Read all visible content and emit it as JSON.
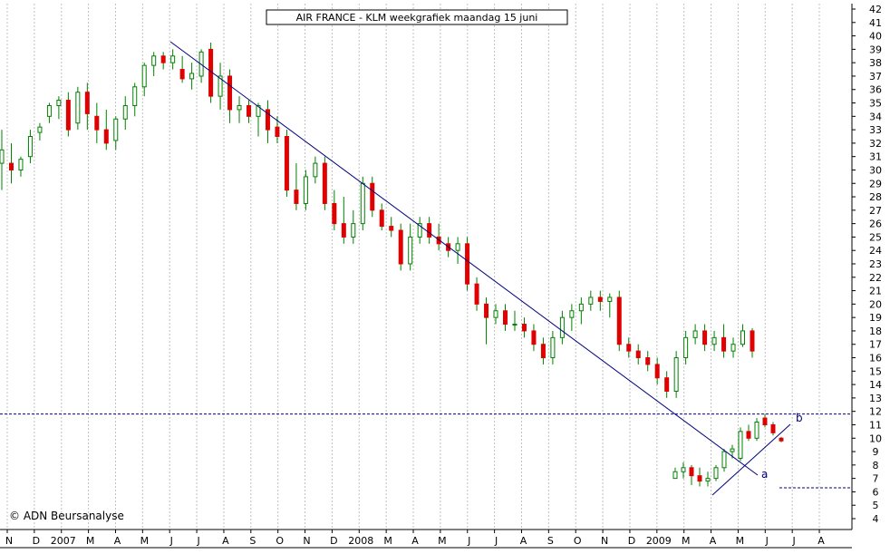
{
  "chart_data": {
    "type": "candlestick",
    "title": "AIR FRANCE - KLM weekgrafiek maandag 15 juni",
    "copyright": "© ADN Beursanalyse",
    "ylim": [
      4,
      42
    ],
    "y_ticks": [
      4,
      5,
      6,
      7,
      8,
      9,
      10,
      11,
      12,
      13,
      14,
      15,
      16,
      17,
      18,
      19,
      20,
      21,
      22,
      23,
      24,
      25,
      26,
      27,
      28,
      29,
      30,
      31,
      32,
      33,
      34,
      35,
      36,
      37,
      38,
      39,
      40,
      41,
      42
    ],
    "x_ticks": [
      "N",
      "D",
      "2007",
      "M",
      "A",
      "M",
      "J",
      "J",
      "A",
      "S",
      "O",
      "N",
      "D",
      "2008",
      "M",
      "A",
      "M",
      "J",
      "J",
      "A",
      "S",
      "O",
      "N",
      "D",
      "2009",
      "M",
      "A",
      "M",
      "J",
      "J",
      "A"
    ],
    "grid": true,
    "colors": {
      "up": "#ffffff",
      "down": "#e00000",
      "wick": "#008000",
      "trend": "#000080",
      "grid": "#c0c0c0",
      "level": "#000080"
    },
    "horizontal_levels": [
      11.8,
      6.3
    ],
    "trendlines": [
      {
        "start": [
          0,
          39.5
        ],
        "end": [
          79,
          7.0
        ]
      },
      {
        "start": [
          0,
          5.5
        ],
        "end": [
          11,
          11.0
        ]
      }
    ],
    "annotations": [
      {
        "label": "a",
        "value": 7.3
      },
      {
        "label": "b",
        "value": 11.5
      }
    ],
    "series": [
      {
        "ohlc": [
          [
            30.5,
            33.0,
            28.5,
            31.5
          ],
          [
            30.5,
            32.0,
            29.0,
            30.0
          ],
          [
            30.0,
            31.0,
            29.5,
            30.8
          ],
          [
            31.0,
            33.0,
            30.5,
            32.5
          ],
          [
            32.8,
            33.5,
            32.2,
            33.2
          ],
          [
            34.0,
            35.0,
            33.5,
            34.8
          ],
          [
            34.8,
            35.5,
            33.8,
            35.2
          ],
          [
            35.2,
            35.8,
            32.5,
            33.0
          ],
          [
            33.5,
            36.2,
            33.0,
            35.8
          ],
          [
            35.8,
            36.5,
            33.0,
            34.2
          ],
          [
            34.0,
            35.0,
            32.0,
            33.0
          ],
          [
            33.0,
            34.5,
            31.5,
            32.0
          ],
          [
            32.2,
            34.0,
            31.5,
            33.8
          ],
          [
            33.8,
            35.5,
            33.0,
            34.8
          ],
          [
            34.8,
            36.5,
            34.0,
            36.2
          ],
          [
            36.2,
            38.0,
            35.5,
            37.8
          ],
          [
            37.8,
            38.8,
            37.0,
            38.5
          ],
          [
            38.5,
            38.8,
            37.5,
            38.0
          ],
          [
            38.0,
            39.0,
            37.5,
            38.5
          ],
          [
            37.5,
            38.5,
            36.5,
            36.8
          ],
          [
            36.8,
            38.0,
            36.0,
            37.2
          ],
          [
            37.0,
            39.0,
            36.5,
            38.8
          ],
          [
            39.0,
            39.5,
            35.0,
            35.5
          ],
          [
            35.5,
            38.0,
            34.5,
            37.0
          ],
          [
            37.0,
            37.5,
            33.5,
            34.5
          ],
          [
            34.5,
            35.5,
            33.5,
            34.8
          ],
          [
            34.8,
            35.2,
            33.5,
            34.0
          ],
          [
            34.0,
            35.0,
            32.5,
            34.8
          ],
          [
            34.5,
            35.2,
            32.0,
            33.0
          ],
          [
            33.2,
            34.0,
            32.0,
            32.5
          ],
          [
            32.5,
            33.0,
            28.0,
            28.5
          ],
          [
            28.5,
            30.5,
            27.0,
            27.5
          ],
          [
            27.5,
            30.0,
            27.0,
            29.5
          ],
          [
            29.5,
            31.0,
            29.0,
            30.5
          ],
          [
            30.5,
            31.0,
            27.0,
            27.5
          ],
          [
            27.5,
            28.5,
            25.5,
            26.0
          ],
          [
            26.0,
            28.0,
            24.5,
            25.0
          ],
          [
            25.0,
            27.0,
            24.5,
            26.0
          ],
          [
            26.0,
            29.5,
            25.5,
            29.0
          ],
          [
            29.0,
            29.5,
            26.5,
            27.0
          ],
          [
            27.0,
            27.5,
            25.5,
            25.8
          ],
          [
            25.8,
            26.5,
            25.0,
            25.5
          ],
          [
            25.5,
            26.0,
            22.5,
            23.0
          ],
          [
            23.0,
            26.0,
            22.5,
            25.0
          ],
          [
            25.0,
            26.5,
            24.5,
            26.0
          ],
          [
            26.0,
            26.5,
            24.5,
            25.0
          ],
          [
            25.0,
            26.0,
            24.0,
            24.5
          ],
          [
            24.5,
            25.0,
            23.5,
            24.0
          ],
          [
            24.0,
            25.0,
            23.0,
            24.5
          ],
          [
            24.5,
            25.0,
            21.0,
            21.5
          ],
          [
            21.5,
            22.0,
            19.5,
            20.0
          ],
          [
            20.0,
            20.5,
            17.0,
            19.0
          ],
          [
            19.0,
            20.0,
            18.5,
            19.5
          ],
          [
            19.5,
            20.0,
            18.0,
            18.5
          ],
          [
            18.5,
            19.5,
            18.0,
            18.5
          ],
          [
            18.5,
            19.0,
            17.5,
            18.0
          ],
          [
            18.0,
            18.5,
            16.5,
            17.0
          ],
          [
            17.0,
            17.5,
            15.5,
            16.0
          ],
          [
            16.0,
            18.0,
            15.5,
            17.5
          ],
          [
            17.5,
            19.5,
            17.0,
            19.0
          ],
          [
            19.0,
            20.0,
            18.0,
            19.5
          ],
          [
            19.5,
            20.5,
            18.5,
            20.0
          ],
          [
            20.0,
            21.0,
            19.5,
            20.5
          ],
          [
            20.5,
            21.0,
            19.5,
            20.2
          ],
          [
            20.2,
            20.8,
            19.0,
            20.5
          ],
          [
            20.5,
            21.0,
            16.5,
            17.0
          ],
          [
            17.0,
            17.5,
            16.0,
            16.5
          ],
          [
            16.5,
            17.0,
            15.5,
            16.0
          ],
          [
            16.0,
            16.5,
            15.0,
            15.5
          ],
          [
            15.5,
            16.0,
            14.0,
            14.5
          ],
          [
            14.5,
            15.0,
            13.0,
            13.5
          ],
          [
            13.5,
            16.5,
            13.0,
            16.0
          ],
          [
            16.0,
            18.0,
            15.5,
            17.5
          ],
          [
            17.5,
            18.5,
            17.0,
            18.0
          ],
          [
            18.0,
            18.5,
            16.5,
            17.0
          ],
          [
            17.0,
            18.0,
            16.5,
            17.5
          ],
          [
            17.5,
            18.5,
            16.0,
            16.5
          ],
          [
            16.5,
            17.5,
            16.0,
            17.0
          ],
          [
            17.0,
            18.5,
            16.8,
            18.0
          ],
          [
            18.0,
            18.2,
            16.0,
            16.5
          ]
        ]
      }
    ]
  }
}
